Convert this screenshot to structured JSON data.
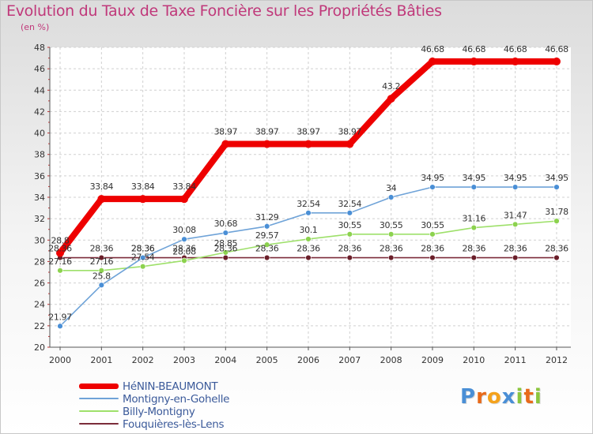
{
  "title": "Evolution du Taux de Taxe Foncière sur les Propriétés Bâties",
  "subtitle": "(en %)",
  "logo": {
    "letters": [
      "P",
      "r",
      "o",
      "x",
      "i",
      "t",
      "i"
    ],
    "colors": [
      "#4a8fd6",
      "#e86a1a",
      "#f4a21c",
      "#4a8fd6",
      "#8cc63e",
      "#e86a1a",
      "#8cc63e"
    ]
  },
  "chart_data": {
    "type": "line",
    "x": [
      "2000",
      "2001",
      "2002",
      "2003",
      "2004",
      "2005",
      "2006",
      "2007",
      "2008",
      "2009",
      "2010",
      "2011",
      "2012"
    ],
    "ylim": [
      20,
      48
    ],
    "yticks": [
      "20",
      "22",
      "24",
      "26",
      "28",
      "30",
      "32",
      "34",
      "36",
      "38",
      "40",
      "42",
      "44",
      "46",
      "48"
    ],
    "grid": true,
    "legend_position": "bottom-left",
    "series": [
      {
        "name": "Fouquières-lès-Lens",
        "color": "#7b2c3a",
        "marker": "#6b1f2a",
        "values": [
          28.36,
          28.36,
          28.36,
          28.36,
          28.36,
          28.36,
          28.36,
          28.36,
          28.36,
          28.36,
          28.36,
          28.36,
          28.36
        ],
        "labels": [
          "28.36",
          "28.36",
          "28.36",
          "28.36",
          "28.36",
          "28.36",
          "28.36",
          "28.36",
          "28.36",
          "28.36",
          "28.36",
          "28.36",
          "28.36"
        ]
      },
      {
        "name": "Billy-Montigny",
        "color": "#9ee06a",
        "marker": "#8cd24e",
        "values": [
          27.16,
          27.16,
          27.54,
          28.08,
          28.85,
          29.57,
          30.1,
          30.55,
          30.55,
          30.55,
          31.16,
          31.47,
          31.78
        ],
        "labels": [
          "27.16",
          "27.16",
          "27.54",
          "28.08",
          "28.85",
          "29.57",
          "30.1",
          "30.55",
          "30.55",
          "30.55",
          "31.16",
          "31.47",
          "31.78"
        ]
      },
      {
        "name": "Montigny-en-Gohelle",
        "color": "#6fa3d8",
        "marker": "#4a8fd6",
        "values": [
          21.97,
          25.8,
          28.36,
          30.08,
          30.68,
          31.29,
          32.54,
          32.54,
          34,
          34.95,
          34.95,
          34.95,
          34.95
        ],
        "labels": [
          "21.97",
          "25.8",
          "28.36",
          "30.08",
          "30.68",
          "31.29",
          "32.54",
          "32.54",
          "34",
          "34.95",
          "34.95",
          "34.95",
          "34.95"
        ]
      },
      {
        "name": "HéNIN-BEAUMONT",
        "color": "#ee0000",
        "marker": "#ee0000",
        "values": [
          28.8,
          33.84,
          33.84,
          33.84,
          38.97,
          38.97,
          38.97,
          38.97,
          43.2,
          46.68,
          46.68,
          46.68,
          46.68
        ],
        "labels": [
          "28.8",
          "33.84",
          "33.84",
          "33.84",
          "38.97",
          "38.97",
          "38.97",
          "38.97",
          "43.2",
          "46.68",
          "46.68",
          "46.68",
          "46.68"
        ]
      }
    ],
    "legend": [
      "HéNIN-BEAUMONT",
      "Montigny-en-Gohelle",
      "Billy-Montigny",
      "Fouquières-lès-Lens"
    ]
  }
}
